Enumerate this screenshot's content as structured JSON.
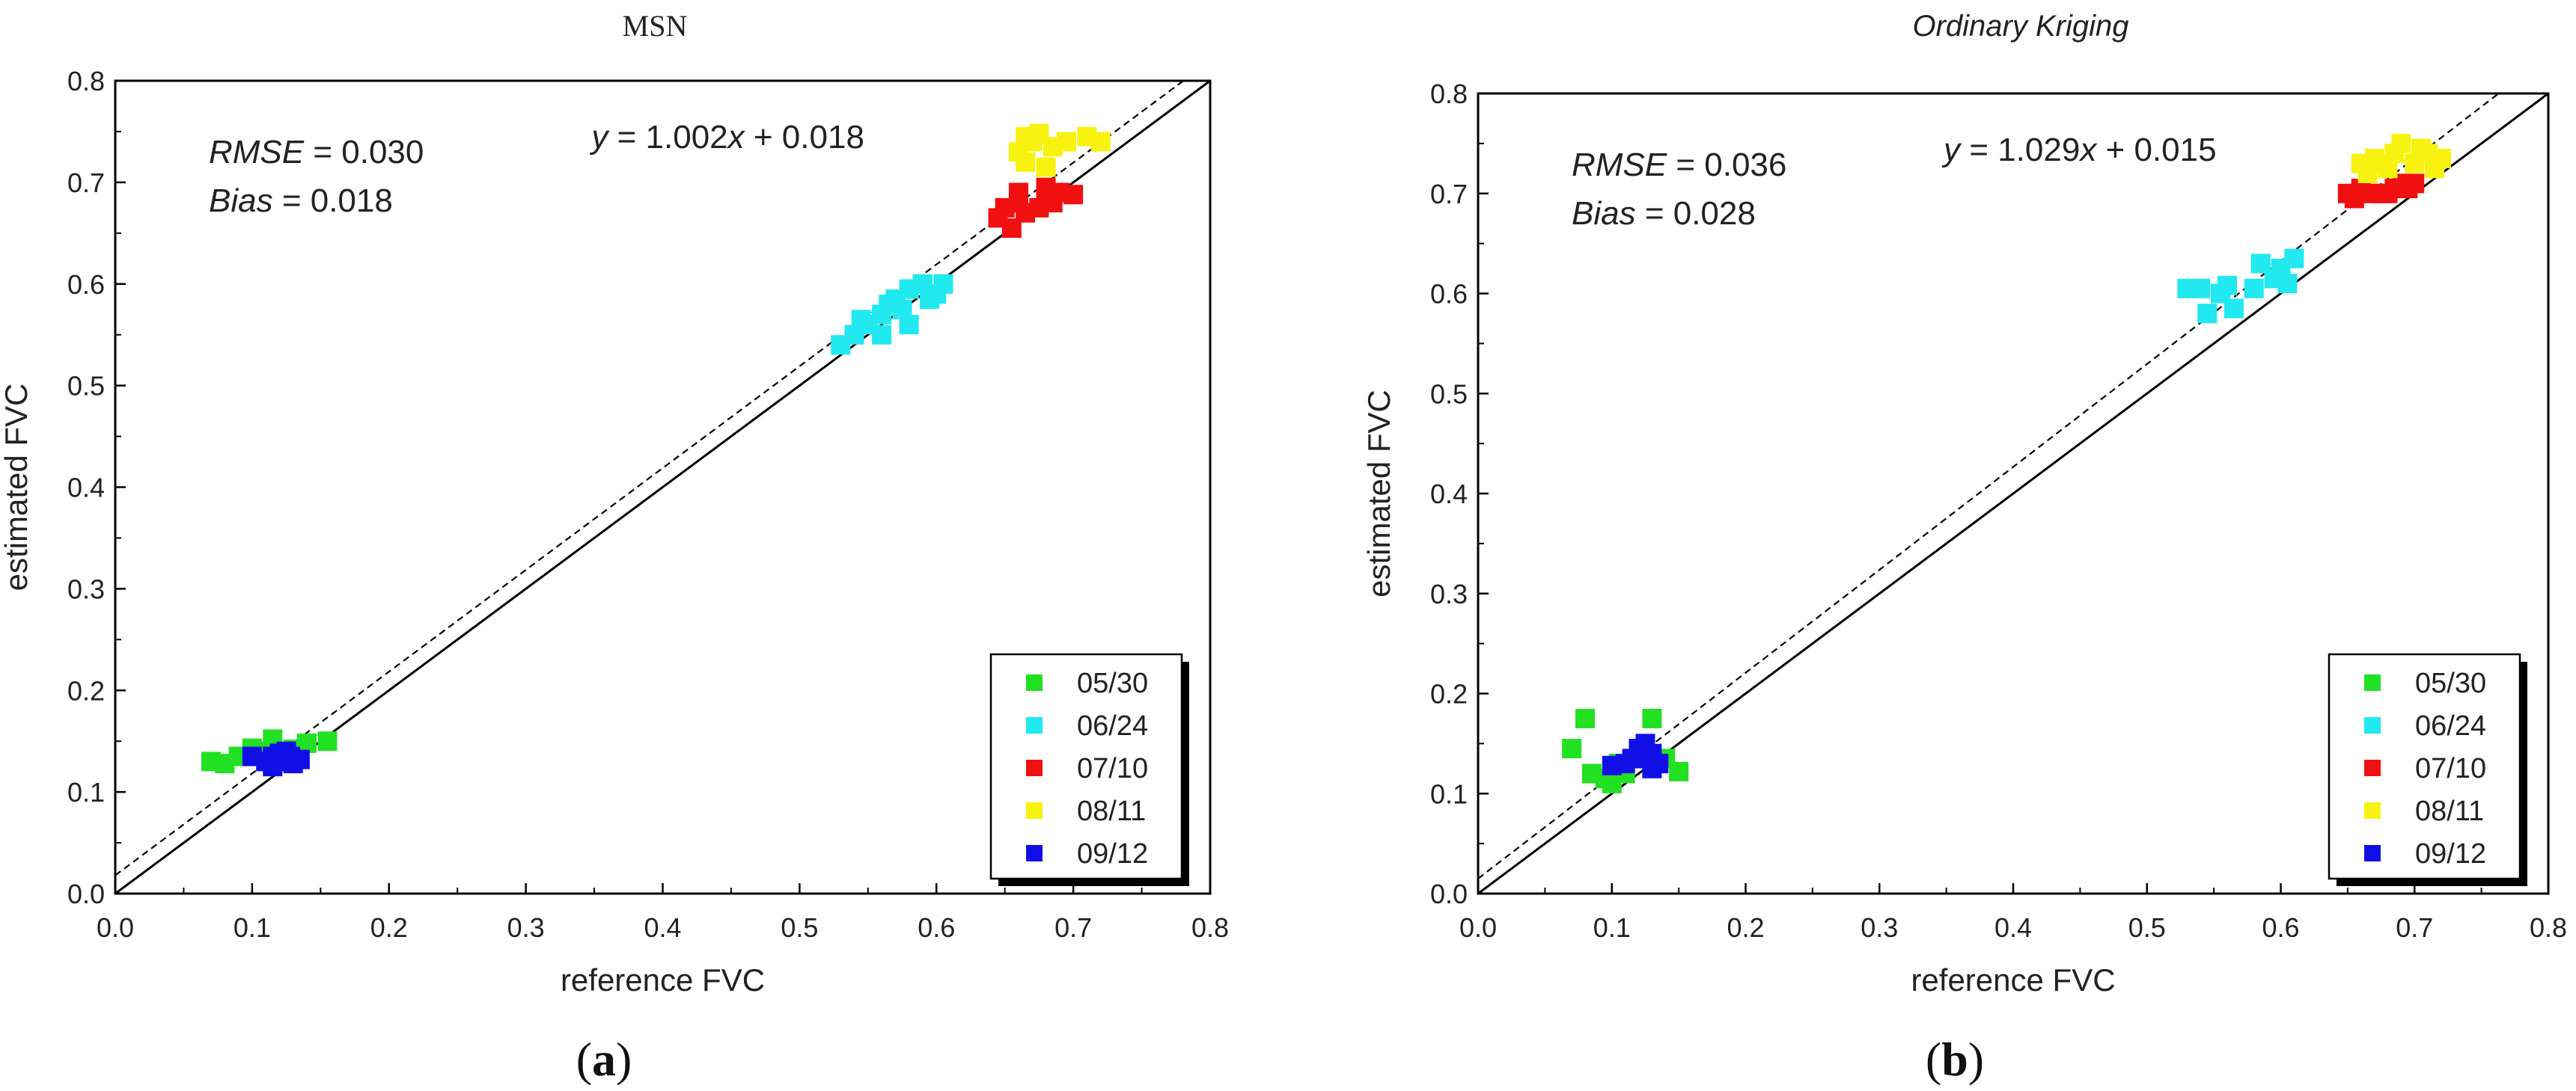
{
  "chart_data": [
    {
      "type": "scatter",
      "panel_label": "(a)",
      "panel_letter": "a",
      "title": "MSN",
      "title_style": "normal",
      "xlabel": "reference FVC",
      "ylabel": "estimated FVC",
      "xlim": [
        0.0,
        0.8
      ],
      "ylim": [
        0.0,
        0.8
      ],
      "xticks": [
        "0.0",
        "0.1",
        "0.2",
        "0.3",
        "0.4",
        "0.5",
        "0.6",
        "0.7",
        "0.8"
      ],
      "yticks": [
        "0.0",
        "0.1",
        "0.2",
        "0.3",
        "0.4",
        "0.5",
        "0.6",
        "0.7",
        "0.8"
      ],
      "grid": false,
      "stats": {
        "rmse_label": "RMSE",
        "rmse_value": " = 0.030",
        "bias_label": "Bias",
        "bias_value": " = 0.018"
      },
      "fit": {
        "slope": 1.002,
        "intercept": 0.018,
        "eq_y": "y",
        "eq_mid": " = 1.002",
        "eq_x": "x",
        "eq_tail": " + 0.018"
      },
      "legend_position": "bottom-right",
      "series": [
        {
          "name": "05/30",
          "color": "#22e022",
          "points": [
            [
              0.07,
              0.13
            ],
            [
              0.08,
              0.128
            ],
            [
              0.09,
              0.135
            ],
            [
              0.1,
              0.143
            ],
            [
              0.11,
              0.14
            ],
            [
              0.115,
              0.152
            ],
            [
              0.13,
              0.142
            ],
            [
              0.14,
              0.148
            ],
            [
              0.155,
              0.15
            ],
            [
              0.12,
              0.135
            ]
          ]
        },
        {
          "name": "06/24",
          "color": "#22e8f0",
          "points": [
            [
              0.53,
              0.54
            ],
            [
              0.54,
              0.55
            ],
            [
              0.545,
              0.565
            ],
            [
              0.55,
              0.56
            ],
            [
              0.56,
              0.57
            ],
            [
              0.565,
              0.58
            ],
            [
              0.57,
              0.585
            ],
            [
              0.575,
              0.575
            ],
            [
              0.58,
              0.595
            ],
            [
              0.58,
              0.56
            ],
            [
              0.59,
              0.6
            ],
            [
              0.595,
              0.585
            ],
            [
              0.6,
              0.59
            ],
            [
              0.605,
              0.6
            ],
            [
              0.56,
              0.55
            ]
          ]
        },
        {
          "name": "07/10",
          "color": "#f01010",
          "points": [
            [
              0.645,
              0.665
            ],
            [
              0.65,
              0.675
            ],
            [
              0.655,
              0.655
            ],
            [
              0.66,
              0.68
            ],
            [
              0.66,
              0.69
            ],
            [
              0.675,
              0.675
            ],
            [
              0.68,
              0.685
            ],
            [
              0.685,
              0.68
            ],
            [
              0.69,
              0.69
            ],
            [
              0.7,
              0.688
            ],
            [
              0.68,
              0.695
            ],
            [
              0.665,
              0.67
            ]
          ]
        },
        {
          "name": "08/11",
          "color": "#f8f210",
          "points": [
            [
              0.66,
              0.73
            ],
            [
              0.665,
              0.745
            ],
            [
              0.67,
              0.74
            ],
            [
              0.675,
              0.748
            ],
            [
              0.68,
              0.715
            ],
            [
              0.685,
              0.735
            ],
            [
              0.695,
              0.74
            ],
            [
              0.71,
              0.745
            ],
            [
              0.72,
              0.74
            ],
            [
              0.665,
              0.72
            ]
          ]
        },
        {
          "name": "09/12",
          "color": "#1010e6",
          "points": [
            [
              0.1,
              0.135
            ],
            [
              0.11,
              0.13
            ],
            [
              0.115,
              0.125
            ],
            [
              0.12,
              0.13
            ],
            [
              0.125,
              0.14
            ],
            [
              0.13,
              0.128
            ],
            [
              0.135,
              0.132
            ],
            [
              0.12,
              0.138
            ],
            [
              0.115,
              0.135
            ],
            [
              0.128,
              0.135
            ]
          ]
        }
      ]
    },
    {
      "type": "scatter",
      "panel_label": "(b)",
      "panel_letter": "b",
      "title": "Ordinary Kriging",
      "title_style": "italic",
      "xlabel": "reference FVC",
      "ylabel": "estimated FVC",
      "xlim": [
        0.0,
        0.8
      ],
      "ylim": [
        0.0,
        0.8
      ],
      "xticks": [
        "0.0",
        "0.1",
        "0.2",
        "0.3",
        "0.4",
        "0.5",
        "0.6",
        "0.7",
        "0.8"
      ],
      "yticks": [
        "0.0",
        "0.1",
        "0.2",
        "0.3",
        "0.4",
        "0.5",
        "0.6",
        "0.7",
        "0.8"
      ],
      "grid": false,
      "stats": {
        "rmse_label": "RMSE",
        "rmse_value": " = 0.036",
        "bias_label": "Bias",
        "bias_value": " = 0.028"
      },
      "fit": {
        "slope": 1.029,
        "intercept": 0.015,
        "eq_y": "y",
        "eq_mid": " = 1.029",
        "eq_x": "x",
        "eq_tail": " + 0.015"
      },
      "legend_position": "bottom-right",
      "series": [
        {
          "name": "05/30",
          "color": "#22e022",
          "points": [
            [
              0.07,
              0.145
            ],
            [
              0.08,
              0.175
            ],
            [
              0.085,
              0.12
            ],
            [
              0.095,
              0.115
            ],
            [
              0.1,
              0.11
            ],
            [
              0.11,
              0.12
            ],
            [
              0.13,
              0.175
            ],
            [
              0.14,
              0.135
            ],
            [
              0.15,
              0.122
            ],
            [
              0.105,
              0.13
            ]
          ]
        },
        {
          "name": "06/24",
          "color": "#22e8f0",
          "points": [
            [
              0.53,
              0.605
            ],
            [
              0.54,
              0.605
            ],
            [
              0.545,
              0.58
            ],
            [
              0.555,
              0.6
            ],
            [
              0.56,
              0.608
            ],
            [
              0.565,
              0.585
            ],
            [
              0.58,
              0.605
            ],
            [
              0.585,
              0.63
            ],
            [
              0.595,
              0.615
            ],
            [
              0.6,
              0.625
            ],
            [
              0.605,
              0.61
            ],
            [
              0.61,
              0.635
            ]
          ]
        },
        {
          "name": "07/10",
          "color": "#f01010",
          "points": [
            [
              0.65,
              0.7
            ],
            [
              0.655,
              0.695
            ],
            [
              0.66,
              0.705
            ],
            [
              0.665,
              0.7
            ],
            [
              0.68,
              0.7
            ],
            [
              0.685,
              0.705
            ],
            [
              0.69,
              0.71
            ],
            [
              0.695,
              0.705
            ],
            [
              0.7,
              0.71
            ],
            [
              0.675,
              0.7
            ]
          ]
        },
        {
          "name": "08/11",
          "color": "#f8f210",
          "points": [
            [
              0.665,
              0.72
            ],
            [
              0.67,
              0.735
            ],
            [
              0.675,
              0.73
            ],
            [
              0.68,
              0.725
            ],
            [
              0.685,
              0.74
            ],
            [
              0.69,
              0.75
            ],
            [
              0.7,
              0.73
            ],
            [
              0.71,
              0.74
            ],
            [
              0.715,
              0.725
            ],
            [
              0.72,
              0.735
            ],
            [
              0.66,
              0.73
            ],
            [
              0.705,
              0.745
            ]
          ]
        },
        {
          "name": "09/12",
          "color": "#1010e6",
          "points": [
            [
              0.11,
              0.13
            ],
            [
              0.115,
              0.135
            ],
            [
              0.12,
              0.14
            ],
            [
              0.125,
              0.15
            ],
            [
              0.13,
              0.14
            ],
            [
              0.135,
              0.13
            ],
            [
              0.12,
              0.145
            ],
            [
              0.125,
              0.135
            ],
            [
              0.13,
              0.125
            ],
            [
              0.1,
              0.128
            ]
          ]
        }
      ]
    }
  ]
}
